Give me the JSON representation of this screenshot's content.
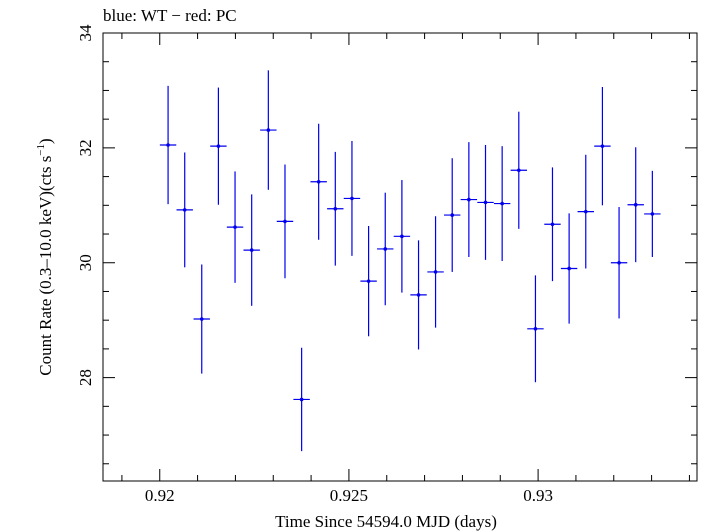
{
  "chart_data": {
    "type": "scatter",
    "title": "blue: WT − red: PC",
    "xlabel": "Time Since 54594.0 MJD (days)",
    "ylabel_main": "Count Rate (0.3–10.0 keV)(cts s",
    "ylabel_sup": "−1",
    "ylabel_close": ")",
    "xlim": [
      0.9185,
      0.9342
    ],
    "ylim": [
      26.2,
      34.0
    ],
    "x_ticks": [
      {
        "value": 0.92,
        "label": "0.92"
      },
      {
        "value": 0.925,
        "label": "0.925"
      },
      {
        "value": 0.93,
        "label": "0.93"
      }
    ],
    "x_minor_step": 0.001,
    "y_ticks": [
      {
        "value": 28,
        "label": "28"
      },
      {
        "value": 30,
        "label": "30"
      },
      {
        "value": 32,
        "label": "32"
      },
      {
        "value": 34,
        "label": "34"
      }
    ],
    "y_minor_step": 0.5,
    "grid": false,
    "series": [
      {
        "color": "#0000ee",
        "x_halfwidth": 0.000217,
        "points": [
          {
            "x": 0.92022,
            "y": 32.05,
            "err": 1.03
          },
          {
            "x": 0.92066,
            "y": 30.92,
            "err": 1.0
          },
          {
            "x": 0.92111,
            "y": 29.02,
            "err": 0.95
          },
          {
            "x": 0.92155,
            "y": 32.03,
            "err": 1.02
          },
          {
            "x": 0.92199,
            "y": 30.62,
            "err": 0.97
          },
          {
            "x": 0.92243,
            "y": 30.22,
            "err": 0.97
          },
          {
            "x": 0.92287,
            "y": 32.31,
            "err": 1.04
          },
          {
            "x": 0.92331,
            "y": 30.72,
            "err": 0.99
          },
          {
            "x": 0.92375,
            "y": 27.62,
            "err": 0.9
          },
          {
            "x": 0.9242,
            "y": 31.41,
            "err": 1.01
          },
          {
            "x": 0.92464,
            "y": 30.94,
            "err": 0.99
          },
          {
            "x": 0.92508,
            "y": 31.12,
            "err": 1.0
          },
          {
            "x": 0.92552,
            "y": 29.68,
            "err": 0.96
          },
          {
            "x": 0.92596,
            "y": 30.24,
            "err": 0.98
          },
          {
            "x": 0.9264,
            "y": 30.46,
            "err": 0.98
          },
          {
            "x": 0.92684,
            "y": 29.44,
            "err": 0.95
          },
          {
            "x": 0.92729,
            "y": 29.84,
            "err": 0.97
          },
          {
            "x": 0.92773,
            "y": 30.83,
            "err": 0.99
          },
          {
            "x": 0.92817,
            "y": 31.1,
            "err": 1.0
          },
          {
            "x": 0.92861,
            "y": 31.05,
            "err": 1.0
          },
          {
            "x": 0.92905,
            "y": 31.03,
            "err": 1.0
          },
          {
            "x": 0.92949,
            "y": 31.61,
            "err": 1.02
          },
          {
            "x": 0.92993,
            "y": 28.85,
            "err": 0.93
          },
          {
            "x": 0.93038,
            "y": 30.67,
            "err": 0.99
          },
          {
            "x": 0.93082,
            "y": 29.9,
            "err": 0.96
          },
          {
            "x": 0.93126,
            "y": 30.89,
            "err": 0.99
          },
          {
            "x": 0.9317,
            "y": 32.03,
            "err": 1.03
          },
          {
            "x": 0.93214,
            "y": 30.0,
            "err": 0.97
          },
          {
            "x": 0.93258,
            "y": 31.01,
            "err": 1.0
          },
          {
            "x": 0.93302,
            "y": 30.85,
            "err": 0.75
          }
        ]
      }
    ]
  }
}
